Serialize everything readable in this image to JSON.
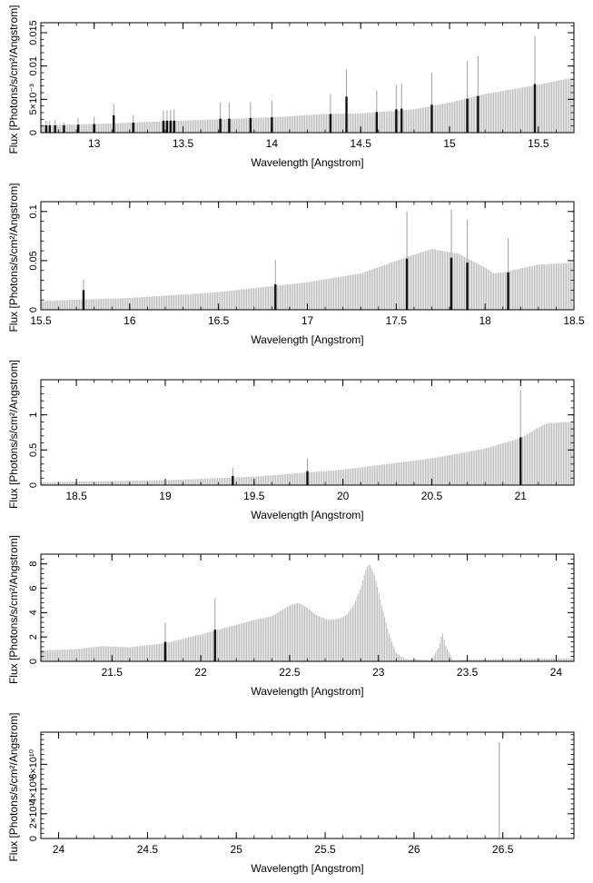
{
  "chart_data": [
    {
      "type": "line",
      "xlabel": "Wavelength [Angstrom]",
      "ylabel": "Flux [Photons/s/cm²/Angstrom]",
      "xlim": [
        12.7,
        15.7
      ],
      "ylim": [
        0,
        0.0165
      ],
      "xticks": [
        13,
        13.5,
        14,
        14.5,
        15,
        15.5
      ],
      "xtick_labels": [
        "13",
        "13.5",
        "14",
        "14.5",
        "15",
        "15.5"
      ],
      "yticks": [
        0,
        0.005,
        0.01,
        0.015
      ],
      "ytick_labels": [
        "0",
        "5×10⁻³",
        "0.01",
        "0.015"
      ],
      "continuum": [
        [
          12.7,
          0.0011
        ],
        [
          13.0,
          0.0013
        ],
        [
          13.5,
          0.0018
        ],
        [
          14.0,
          0.0023
        ],
        [
          14.3,
          0.0028
        ],
        [
          14.5,
          0.0029
        ],
        [
          14.8,
          0.0035
        ],
        [
          15.0,
          0.0045
        ],
        [
          15.2,
          0.0058
        ],
        [
          15.5,
          0.0072
        ],
        [
          15.7,
          0.0083
        ]
      ],
      "lines": [
        {
          "x": 12.73,
          "peak": 0.0018,
          "bar": 0.0011
        },
        {
          "x": 12.75,
          "peak": 0.0018,
          "bar": 0.0011
        },
        {
          "x": 12.78,
          "peak": 0.0019,
          "bar": 0.0011
        },
        {
          "x": 12.83,
          "peak": 0.0015,
          "bar": 0.0011
        },
        {
          "x": 12.91,
          "peak": 0.0022,
          "bar": 0.0012
        },
        {
          "x": 13.0,
          "peak": 0.0024,
          "bar": 0.0013
        },
        {
          "x": 13.11,
          "peak": 0.0043,
          "bar": 0.0026
        },
        {
          "x": 13.22,
          "peak": 0.0026,
          "bar": 0.0015
        },
        {
          "x": 13.39,
          "peak": 0.0033,
          "bar": 0.0018
        },
        {
          "x": 13.41,
          "peak": 0.0033,
          "bar": 0.0018
        },
        {
          "x": 13.43,
          "peak": 0.0034,
          "bar": 0.0018
        },
        {
          "x": 13.45,
          "peak": 0.0035,
          "bar": 0.0018
        },
        {
          "x": 13.71,
          "peak": 0.0045,
          "bar": 0.0021
        },
        {
          "x": 13.76,
          "peak": 0.0045,
          "bar": 0.0021
        },
        {
          "x": 13.88,
          "peak": 0.0046,
          "bar": 0.0022
        },
        {
          "x": 14.0,
          "peak": 0.0048,
          "bar": 0.0023
        },
        {
          "x": 14.33,
          "peak": 0.0058,
          "bar": 0.0028
        },
        {
          "x": 14.42,
          "peak": 0.0095,
          "bar": 0.0054
        },
        {
          "x": 14.59,
          "peak": 0.0063,
          "bar": 0.0031
        },
        {
          "x": 14.7,
          "peak": 0.0072,
          "bar": 0.0035
        },
        {
          "x": 14.73,
          "peak": 0.0074,
          "bar": 0.0036
        },
        {
          "x": 14.9,
          "peak": 0.009,
          "bar": 0.0042
        },
        {
          "x": 15.1,
          "peak": 0.0108,
          "bar": 0.0051
        },
        {
          "x": 15.16,
          "peak": 0.0115,
          "bar": 0.0055
        },
        {
          "x": 15.48,
          "peak": 0.0145,
          "bar": 0.0073
        }
      ]
    },
    {
      "type": "line",
      "xlabel": "Wavelength [Angstrom]",
      "ylabel": "Flux [Photons/s/cm²/Angstrom]",
      "xlim": [
        15.5,
        18.5
      ],
      "ylim": [
        0,
        0.11
      ],
      "xticks": [
        15.5,
        16,
        16.5,
        17,
        17.5,
        18,
        18.5
      ],
      "xtick_labels": [
        "15.5",
        "16",
        "16.5",
        "17",
        "17.5",
        "18",
        "18.5"
      ],
      "yticks": [
        0,
        0.05,
        0.1
      ],
      "ytick_labels": [
        "0",
        "0.05",
        "0.1"
      ],
      "continuum": [
        [
          15.5,
          0.009
        ],
        [
          16.0,
          0.012
        ],
        [
          16.5,
          0.018
        ],
        [
          17.0,
          0.028
        ],
        [
          17.3,
          0.037
        ],
        [
          17.55,
          0.053
        ],
        [
          17.7,
          0.062
        ],
        [
          17.85,
          0.057
        ],
        [
          18.0,
          0.043
        ],
        [
          18.05,
          0.037
        ],
        [
          18.1,
          0.038
        ],
        [
          18.3,
          0.046
        ],
        [
          18.5,
          0.048
        ]
      ],
      "lines": [
        {
          "x": 15.74,
          "peak": 0.031,
          "bar": 0.02
        },
        {
          "x": 16.82,
          "peak": 0.051,
          "bar": 0.026
        },
        {
          "x": 17.56,
          "peak": 0.1,
          "bar": 0.052
        },
        {
          "x": 17.81,
          "peak": 0.102,
          "bar": 0.053
        },
        {
          "x": 17.9,
          "peak": 0.092,
          "bar": 0.048
        },
        {
          "x": 18.13,
          "peak": 0.073,
          "bar": 0.038
        }
      ]
    },
    {
      "type": "line",
      "xlabel": "Wavelength [Angstrom]",
      "ylabel": "Flux [Photons/s/cm²/Angstrom]",
      "xlim": [
        18.3,
        21.3
      ],
      "ylim": [
        0,
        1.5
      ],
      "xticks": [
        18.5,
        19,
        19.5,
        20,
        20.5,
        21
      ],
      "xtick_labels": [
        "18.5",
        "19",
        "19.5",
        "20",
        "20.5",
        "21"
      ],
      "yticks": [
        0,
        0.5,
        1
      ],
      "ytick_labels": [
        "0",
        "0.5",
        "1"
      ],
      "continuum": [
        [
          18.3,
          0.04
        ],
        [
          18.5,
          0.05
        ],
        [
          19.0,
          0.07
        ],
        [
          19.5,
          0.12
        ],
        [
          20.0,
          0.22
        ],
        [
          20.5,
          0.38
        ],
        [
          20.8,
          0.52
        ],
        [
          21.0,
          0.67
        ],
        [
          21.1,
          0.82
        ],
        [
          21.15,
          0.88
        ],
        [
          21.3,
          0.9
        ]
      ],
      "lines": [
        {
          "x": 19.38,
          "peak": 0.25,
          "bar": 0.13
        },
        {
          "x": 19.8,
          "peak": 0.38,
          "bar": 0.2
        },
        {
          "x": 21.0,
          "peak": 1.35,
          "bar": 0.68
        }
      ]
    },
    {
      "type": "line",
      "xlabel": "Wavelength [Angstrom]",
      "ylabel": "Flux [Photons/s/cm²/Angstrom]",
      "xlim": [
        21.1,
        24.1
      ],
      "ylim": [
        0,
        8.8
      ],
      "xticks": [
        21.5,
        22,
        22.5,
        23,
        23.5,
        24
      ],
      "xtick_labels": [
        "21.5",
        "22",
        "22.5",
        "23",
        "23.5",
        "24"
      ],
      "yticks": [
        0,
        2,
        4,
        6,
        8
      ],
      "ytick_labels": [
        "0",
        "2",
        "4",
        "6",
        "8"
      ],
      "continuum": [
        [
          21.1,
          0.9
        ],
        [
          21.3,
          1.0
        ],
        [
          21.45,
          1.25
        ],
        [
          21.6,
          1.15
        ],
        [
          21.8,
          1.5
        ],
        [
          22.0,
          2.2
        ],
        [
          22.2,
          3.0
        ],
        [
          22.3,
          3.4
        ],
        [
          22.4,
          3.7
        ],
        [
          22.5,
          4.6
        ],
        [
          22.55,
          4.8
        ],
        [
          22.6,
          4.4
        ],
        [
          22.65,
          3.8
        ],
        [
          22.72,
          3.4
        ],
        [
          22.78,
          3.5
        ],
        [
          22.82,
          3.8
        ],
        [
          22.86,
          4.6
        ],
        [
          22.9,
          6.0
        ],
        [
          22.93,
          7.6
        ],
        [
          22.95,
          8.0
        ],
        [
          22.98,
          7.0
        ],
        [
          23.02,
          4.5
        ],
        [
          23.06,
          2.2
        ],
        [
          23.1,
          0.7
        ],
        [
          23.15,
          0.2
        ],
        [
          23.3,
          0.1
        ],
        [
          23.34,
          1.2
        ],
        [
          23.36,
          2.4
        ],
        [
          23.38,
          1.2
        ],
        [
          23.42,
          0.1
        ],
        [
          23.5,
          0.15
        ],
        [
          24.1,
          0.25
        ]
      ],
      "lines": [
        {
          "x": 21.8,
          "peak": 3.2,
          "bar": 1.6
        },
        {
          "x": 22.08,
          "peak": 5.2,
          "bar": 2.6
        }
      ]
    },
    {
      "type": "line",
      "xlabel": "Wavelength [Angstrom]",
      "ylabel": "Flux [Photons/s/cm²/Angstrom]",
      "xlim": [
        23.9,
        26.9
      ],
      "ylim": [
        0,
        86000000000.0
      ],
      "xticks": [
        24,
        24.5,
        25,
        25.5,
        26,
        26.5
      ],
      "xtick_labels": [
        "24",
        "24.5",
        "25",
        "25.5",
        "26",
        "26.5"
      ],
      "yticks": [
        0,
        20000000000.0,
        40000000000.0,
        60000000000.0
      ],
      "ytick_labels": [
        "0",
        "2×10¹⁰",
        "4×10¹⁰",
        "6×10¹⁰"
      ],
      "continuum": [],
      "lines": [
        {
          "x": 26.48,
          "peak": 78000000000.0,
          "bar": 0
        }
      ]
    }
  ]
}
